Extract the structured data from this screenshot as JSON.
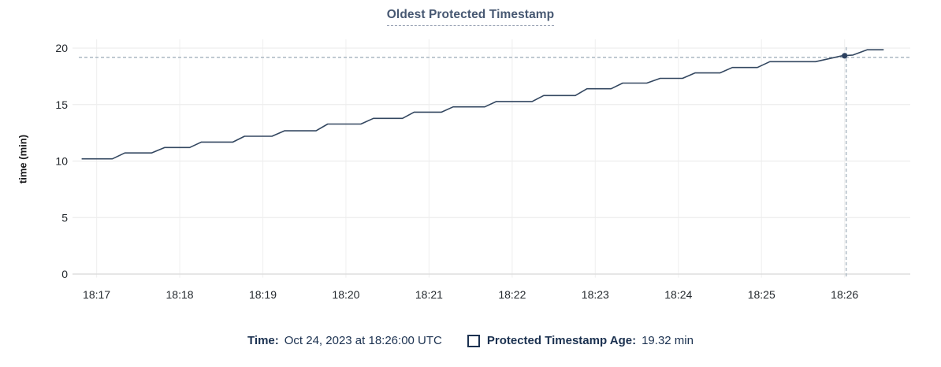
{
  "title": {
    "text": "Oldest Protected Timestamp"
  },
  "y_axis_title": "time (min)",
  "legend": {
    "time_label": "Time:",
    "time_value": "Oct 24, 2023 at 18:26:00 UTC",
    "series_label": "Protected Timestamp Age:",
    "series_value": "19.32 min"
  },
  "colors": {
    "line": "#334760",
    "marker": "#2c4160",
    "crosshair": "#a3b1bd",
    "grid_horizontal": "#ededed",
    "grid_vertical": "#f1f1f1",
    "baseline": "#dedede",
    "axis_text": "#24292e",
    "title_text": "#475872",
    "legend_text": "#1b3150"
  },
  "chart_data": {
    "type": "line",
    "title": "Oldest Protected Timestamp",
    "xlabel": "",
    "ylabel": "time (min)",
    "grid": true,
    "legend_position": "bottom",
    "x_tick_labels": [
      "18:17",
      "18:18",
      "18:19",
      "18:20",
      "18:21",
      "18:22",
      "18:23",
      "18:24",
      "18:25",
      "18:26"
    ],
    "x_tick_minutes": [
      0,
      1,
      2,
      3,
      4,
      5,
      6,
      7,
      8,
      9
    ],
    "y_ticks": [
      0,
      5,
      10,
      15,
      20
    ],
    "x_domain_minutes": [
      -0.29,
      9.79
    ],
    "y_domain": [
      0,
      20.77
    ],
    "series": [
      {
        "name": "Protected Timestamp Age",
        "unit": "min",
        "points": [
          [
            -0.18,
            10.2
          ],
          [
            0.19,
            10.2
          ],
          [
            0.34,
            10.72
          ],
          [
            0.66,
            10.72
          ],
          [
            0.82,
            11.2
          ],
          [
            1.12,
            11.2
          ],
          [
            1.26,
            11.68
          ],
          [
            1.64,
            11.68
          ],
          [
            1.78,
            12.2
          ],
          [
            2.11,
            12.2
          ],
          [
            2.26,
            12.68
          ],
          [
            2.64,
            12.68
          ],
          [
            2.78,
            13.28
          ],
          [
            3.18,
            13.28
          ],
          [
            3.33,
            13.78
          ],
          [
            3.68,
            13.78
          ],
          [
            3.82,
            14.33
          ],
          [
            4.15,
            14.33
          ],
          [
            4.29,
            14.8
          ],
          [
            4.67,
            14.8
          ],
          [
            4.81,
            15.27
          ],
          [
            5.24,
            15.27
          ],
          [
            5.38,
            15.8
          ],
          [
            5.76,
            15.8
          ],
          [
            5.9,
            16.4
          ],
          [
            6.19,
            16.4
          ],
          [
            6.33,
            16.9
          ],
          [
            6.62,
            16.9
          ],
          [
            6.78,
            17.32
          ],
          [
            7.05,
            17.32
          ],
          [
            7.2,
            17.8
          ],
          [
            7.5,
            17.8
          ],
          [
            7.65,
            18.28
          ],
          [
            7.95,
            18.28
          ],
          [
            8.1,
            18.8
          ],
          [
            8.65,
            18.8
          ],
          [
            8.97,
            19.32
          ],
          [
            9.1,
            19.38
          ],
          [
            9.27,
            19.85
          ],
          [
            9.47,
            19.85
          ]
        ]
      }
    ],
    "hover": {
      "t_minutes": 9.0,
      "time": "18:26:00",
      "value": 19.32,
      "value_text": "19.32 min"
    }
  }
}
